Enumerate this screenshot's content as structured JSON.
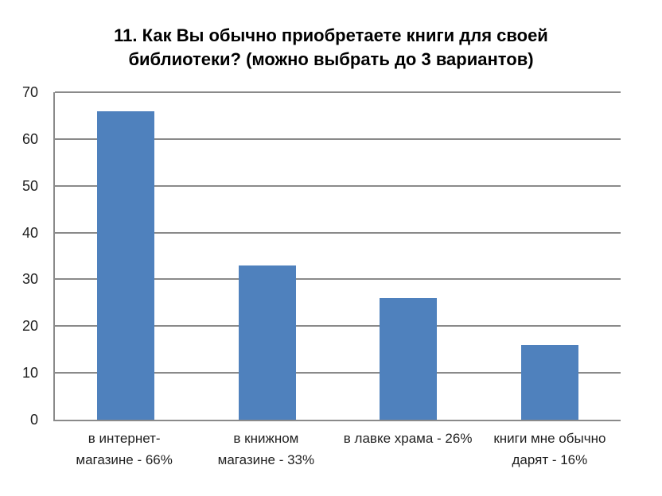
{
  "title": "11. Как Вы обычно приобретаете книги для своей\nбиблиотеки? (можно выбрать до 3 вариантов)",
  "chart_data": {
    "type": "bar",
    "title": "11. Как Вы обычно приобретаете книги для своей библиотеки? (можно выбрать до 3 вариантов)",
    "categories": [
      "в интернет-магазине - 66%",
      "в книжном магазине - 33%",
      "в лавке храма - 26%",
      "книги мне обычно дарят - 16%"
    ],
    "category_lines": [
      [
        "в интернет-",
        "магазине - 66%"
      ],
      [
        "в книжном",
        "магазине - 33%"
      ],
      [
        "в лавке храма - 26%"
      ],
      [
        "книги мне обычно",
        "дарят - 16%"
      ]
    ],
    "values": [
      66,
      33,
      26,
      16
    ],
    "xlabel": "",
    "ylabel": "",
    "ylim": [
      0,
      70
    ],
    "yticks": [
      0,
      10,
      20,
      30,
      40,
      50,
      60,
      70
    ],
    "grid": true,
    "legend": false,
    "bar_color": "#4F81BD",
    "gridline_color": "#8A8A8A",
    "axis_color": "#8A8A8A",
    "text_color": "#1F1F1F",
    "title_color": "#000000",
    "background": "#FFFFFF"
  }
}
